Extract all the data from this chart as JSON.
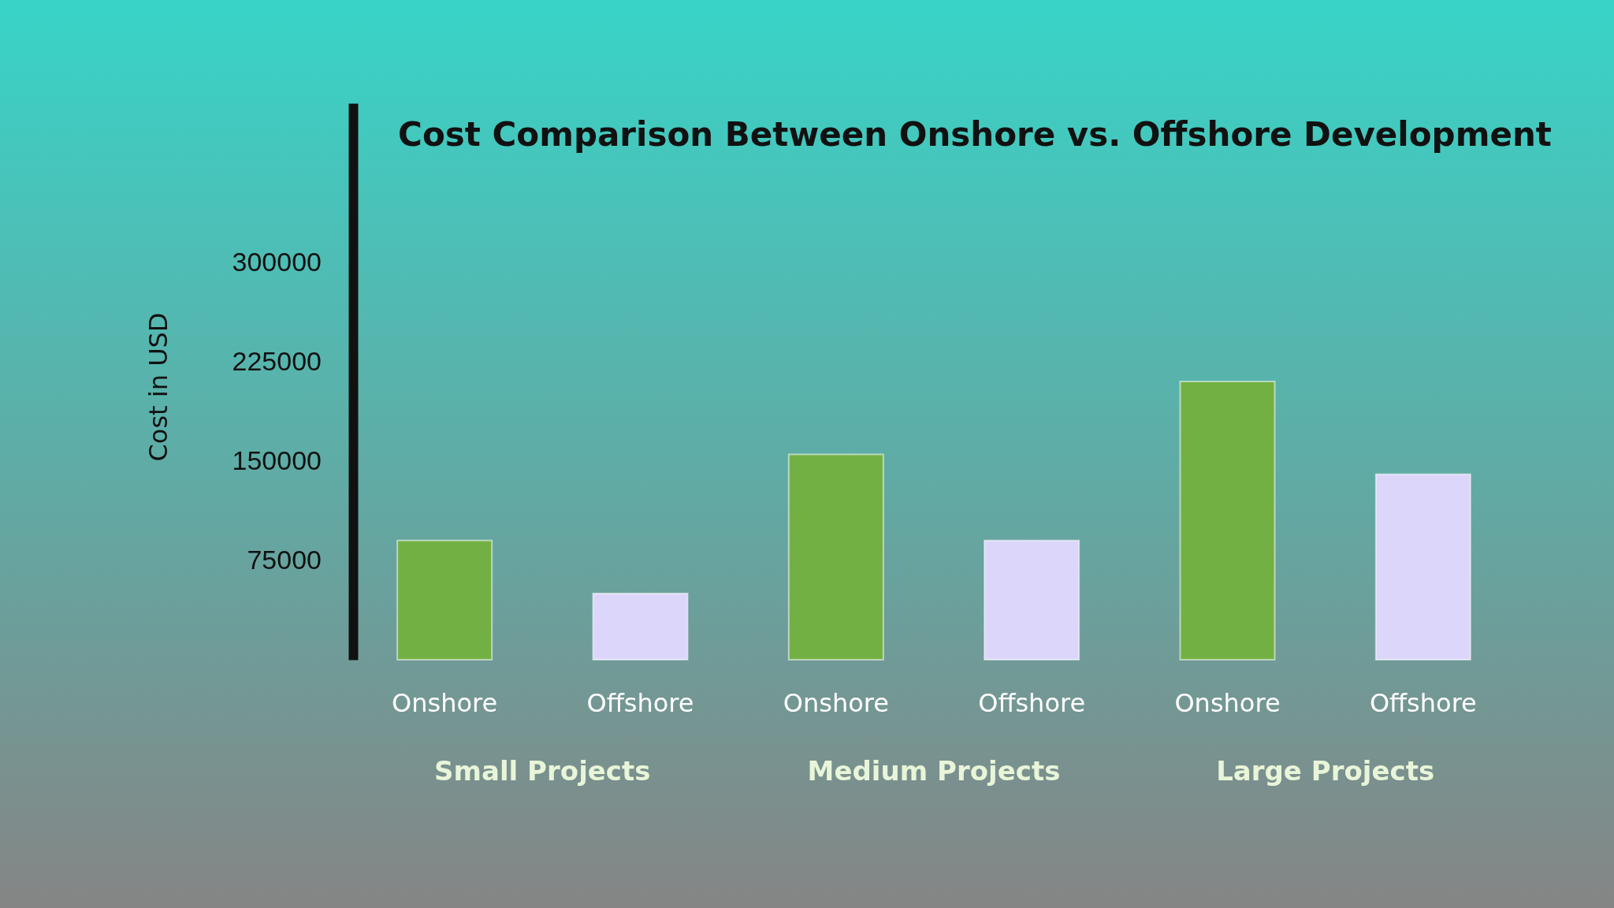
{
  "chart_data": {
    "type": "bar",
    "title": "Cost Comparison Between Onshore vs. Offshore Development",
    "ylabel": "Cost in USD",
    "categories": [
      "Small Projects",
      "Medium Projects",
      "Large Projects"
    ],
    "series": [
      {
        "name": "Onshore",
        "color": "#72b043",
        "values": [
          90000,
          155000,
          210000
        ]
      },
      {
        "name": "Offshore",
        "color": "#dcd6fb",
        "values": [
          50000,
          90000,
          140000
        ]
      }
    ],
    "ylim": [
      0,
      420000
    ],
    "yticks": [
      75000,
      150000,
      225000,
      300000
    ],
    "grid": false,
    "legend": false
  }
}
